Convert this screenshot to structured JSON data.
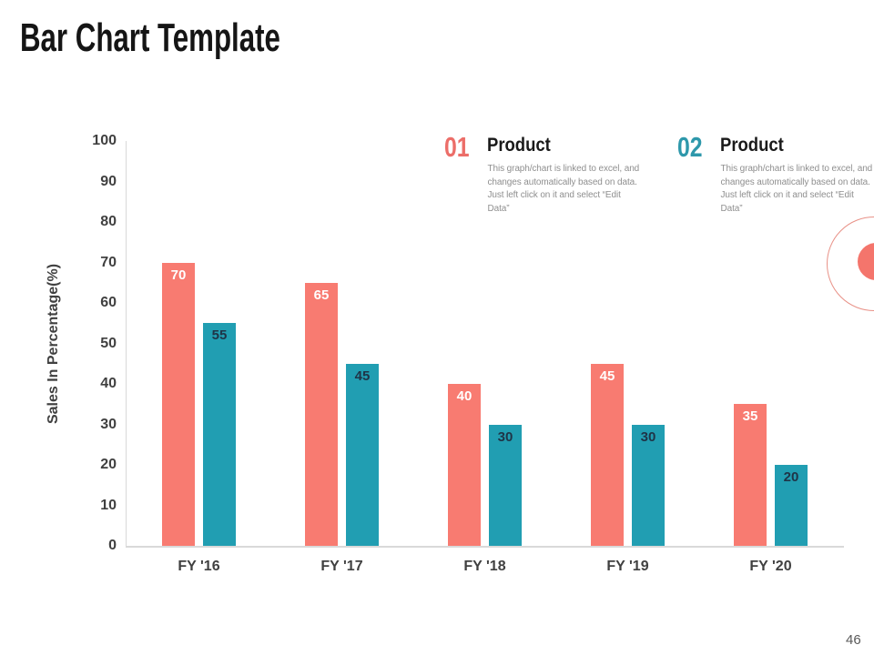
{
  "slide": {
    "title": "Bar Chart Template",
    "page_number": "46"
  },
  "legend_blocks": [
    {
      "number": "01",
      "heading": "Product",
      "body": "This graph/chart is linked to excel, and changes automatically based on data. Just left click on it and select “Edit Data”",
      "color": "#ec6e69"
    },
    {
      "number": "02",
      "heading": "Product",
      "body": "This graph/chart is linked to excel, and changes automatically based on data. Just left click on it and select “Edit Data”",
      "color": "#2e98ab"
    }
  ],
  "chart_data": {
    "type": "bar",
    "categories": [
      "FY '16",
      "FY '17",
      "FY '18",
      "FY '19",
      "FY '20"
    ],
    "series": [
      {
        "name": "01 Product",
        "color": "#f87b71",
        "label_color": "#ffffff",
        "values": [
          70,
          65,
          40,
          45,
          35
        ]
      },
      {
        "name": "02 Product",
        "color": "#219eb2",
        "label_color": "#1f3447",
        "values": [
          55,
          45,
          30,
          30,
          20
        ]
      }
    ],
    "title": "",
    "xlabel": "",
    "ylabel": "Sales In Percentage(%)",
    "ylim": [
      0,
      100
    ],
    "ytick_step": 10,
    "grid": false,
    "value_labels": "inside-top",
    "axis_color": "#d9d9d9",
    "tick_text_color": "#404040"
  },
  "decor": {
    "ring_color": "#e89086",
    "dot_color": "#f4756c"
  }
}
